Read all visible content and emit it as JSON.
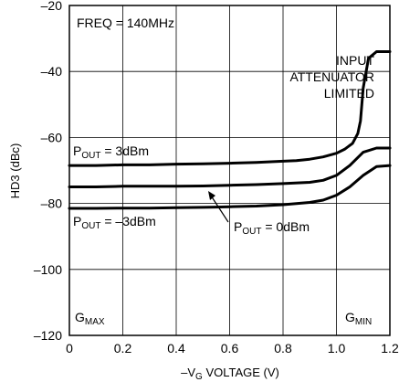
{
  "chart_data": {
    "type": "line",
    "xlabel": "–V",
    "xlabel_sub": "G",
    "xlabel_tail": " VOLTAGE (V)",
    "ylabel": "HD3 (dBc)",
    "xlim": [
      0,
      1.2
    ],
    "ylim": [
      -120,
      -20
    ],
    "xticks": [
      0,
      0.2,
      0.4,
      0.6,
      0.8,
      1.0,
      1.2
    ],
    "xtick_labels": [
      "0",
      "0.2",
      "0.4",
      "0.6",
      "0.8",
      "1.0",
      "1.2"
    ],
    "yticks": [
      -120,
      -100,
      -80,
      -60,
      -40,
      -20
    ],
    "ytick_labels": [
      "–120",
      "–100",
      "–80",
      "–60",
      "–40",
      "–20"
    ],
    "grid": true,
    "series": [
      {
        "name": "POUT = 3dBm",
        "x": [
          0,
          0.1,
          0.2,
          0.3,
          0.4,
          0.5,
          0.6,
          0.7,
          0.8,
          0.85,
          0.9,
          0.95,
          1.0,
          1.03,
          1.06,
          1.08,
          1.09,
          1.1,
          1.12,
          1.15,
          1.2
        ],
        "y": [
          -68.5,
          -68.5,
          -68.3,
          -68.3,
          -68.1,
          -68.0,
          -67.8,
          -67.6,
          -67.2,
          -67.0,
          -66.6,
          -65.9,
          -64.8,
          -63.6,
          -61.8,
          -58.8,
          -55.0,
          -45.0,
          -36.0,
          -34.0,
          -34.0
        ]
      },
      {
        "name": "POUT = 0dBm",
        "x": [
          0,
          0.1,
          0.2,
          0.3,
          0.4,
          0.5,
          0.6,
          0.7,
          0.8,
          0.9,
          0.95,
          1.0,
          1.05,
          1.1,
          1.15,
          1.2
        ],
        "y": [
          -75.0,
          -75.0,
          -74.8,
          -74.8,
          -74.8,
          -74.7,
          -74.5,
          -74.3,
          -74.0,
          -73.6,
          -73.0,
          -71.5,
          -68.5,
          -64.5,
          -63.2,
          -63.2
        ]
      },
      {
        "name": "POUT = –3dBm",
        "x": [
          0,
          0.1,
          0.2,
          0.3,
          0.4,
          0.5,
          0.55,
          0.6,
          0.7,
          0.8,
          0.9,
          0.95,
          1.0,
          1.05,
          1.1,
          1.15,
          1.2
        ],
        "y": [
          -81.5,
          -81.5,
          -81.4,
          -81.4,
          -81.3,
          -81.2,
          -81.1,
          -81.0,
          -80.8,
          -80.4,
          -79.7,
          -79.0,
          -77.5,
          -75.0,
          -71.5,
          -68.8,
          -68.5
        ]
      }
    ],
    "annotations": {
      "freq": "FREQ = 140MHz",
      "input_line1": "INPUT",
      "input_line2": "ATTENUATOR",
      "input_line3": "LIMITED",
      "p3_main": "P",
      "p3_sub": "OUT",
      "p3_tail": " = 3dBm",
      "p0_main": "P",
      "p0_sub": "OUT",
      "p0_tail": " = 0dBm",
      "pm3_main": "P",
      "pm3_sub": "OUT",
      "pm3_tail": " = –3dBm",
      "gmax_main": "G",
      "gmax_sub": "MAX",
      "gmin_main": "G",
      "gmin_sub": "MIN"
    }
  }
}
